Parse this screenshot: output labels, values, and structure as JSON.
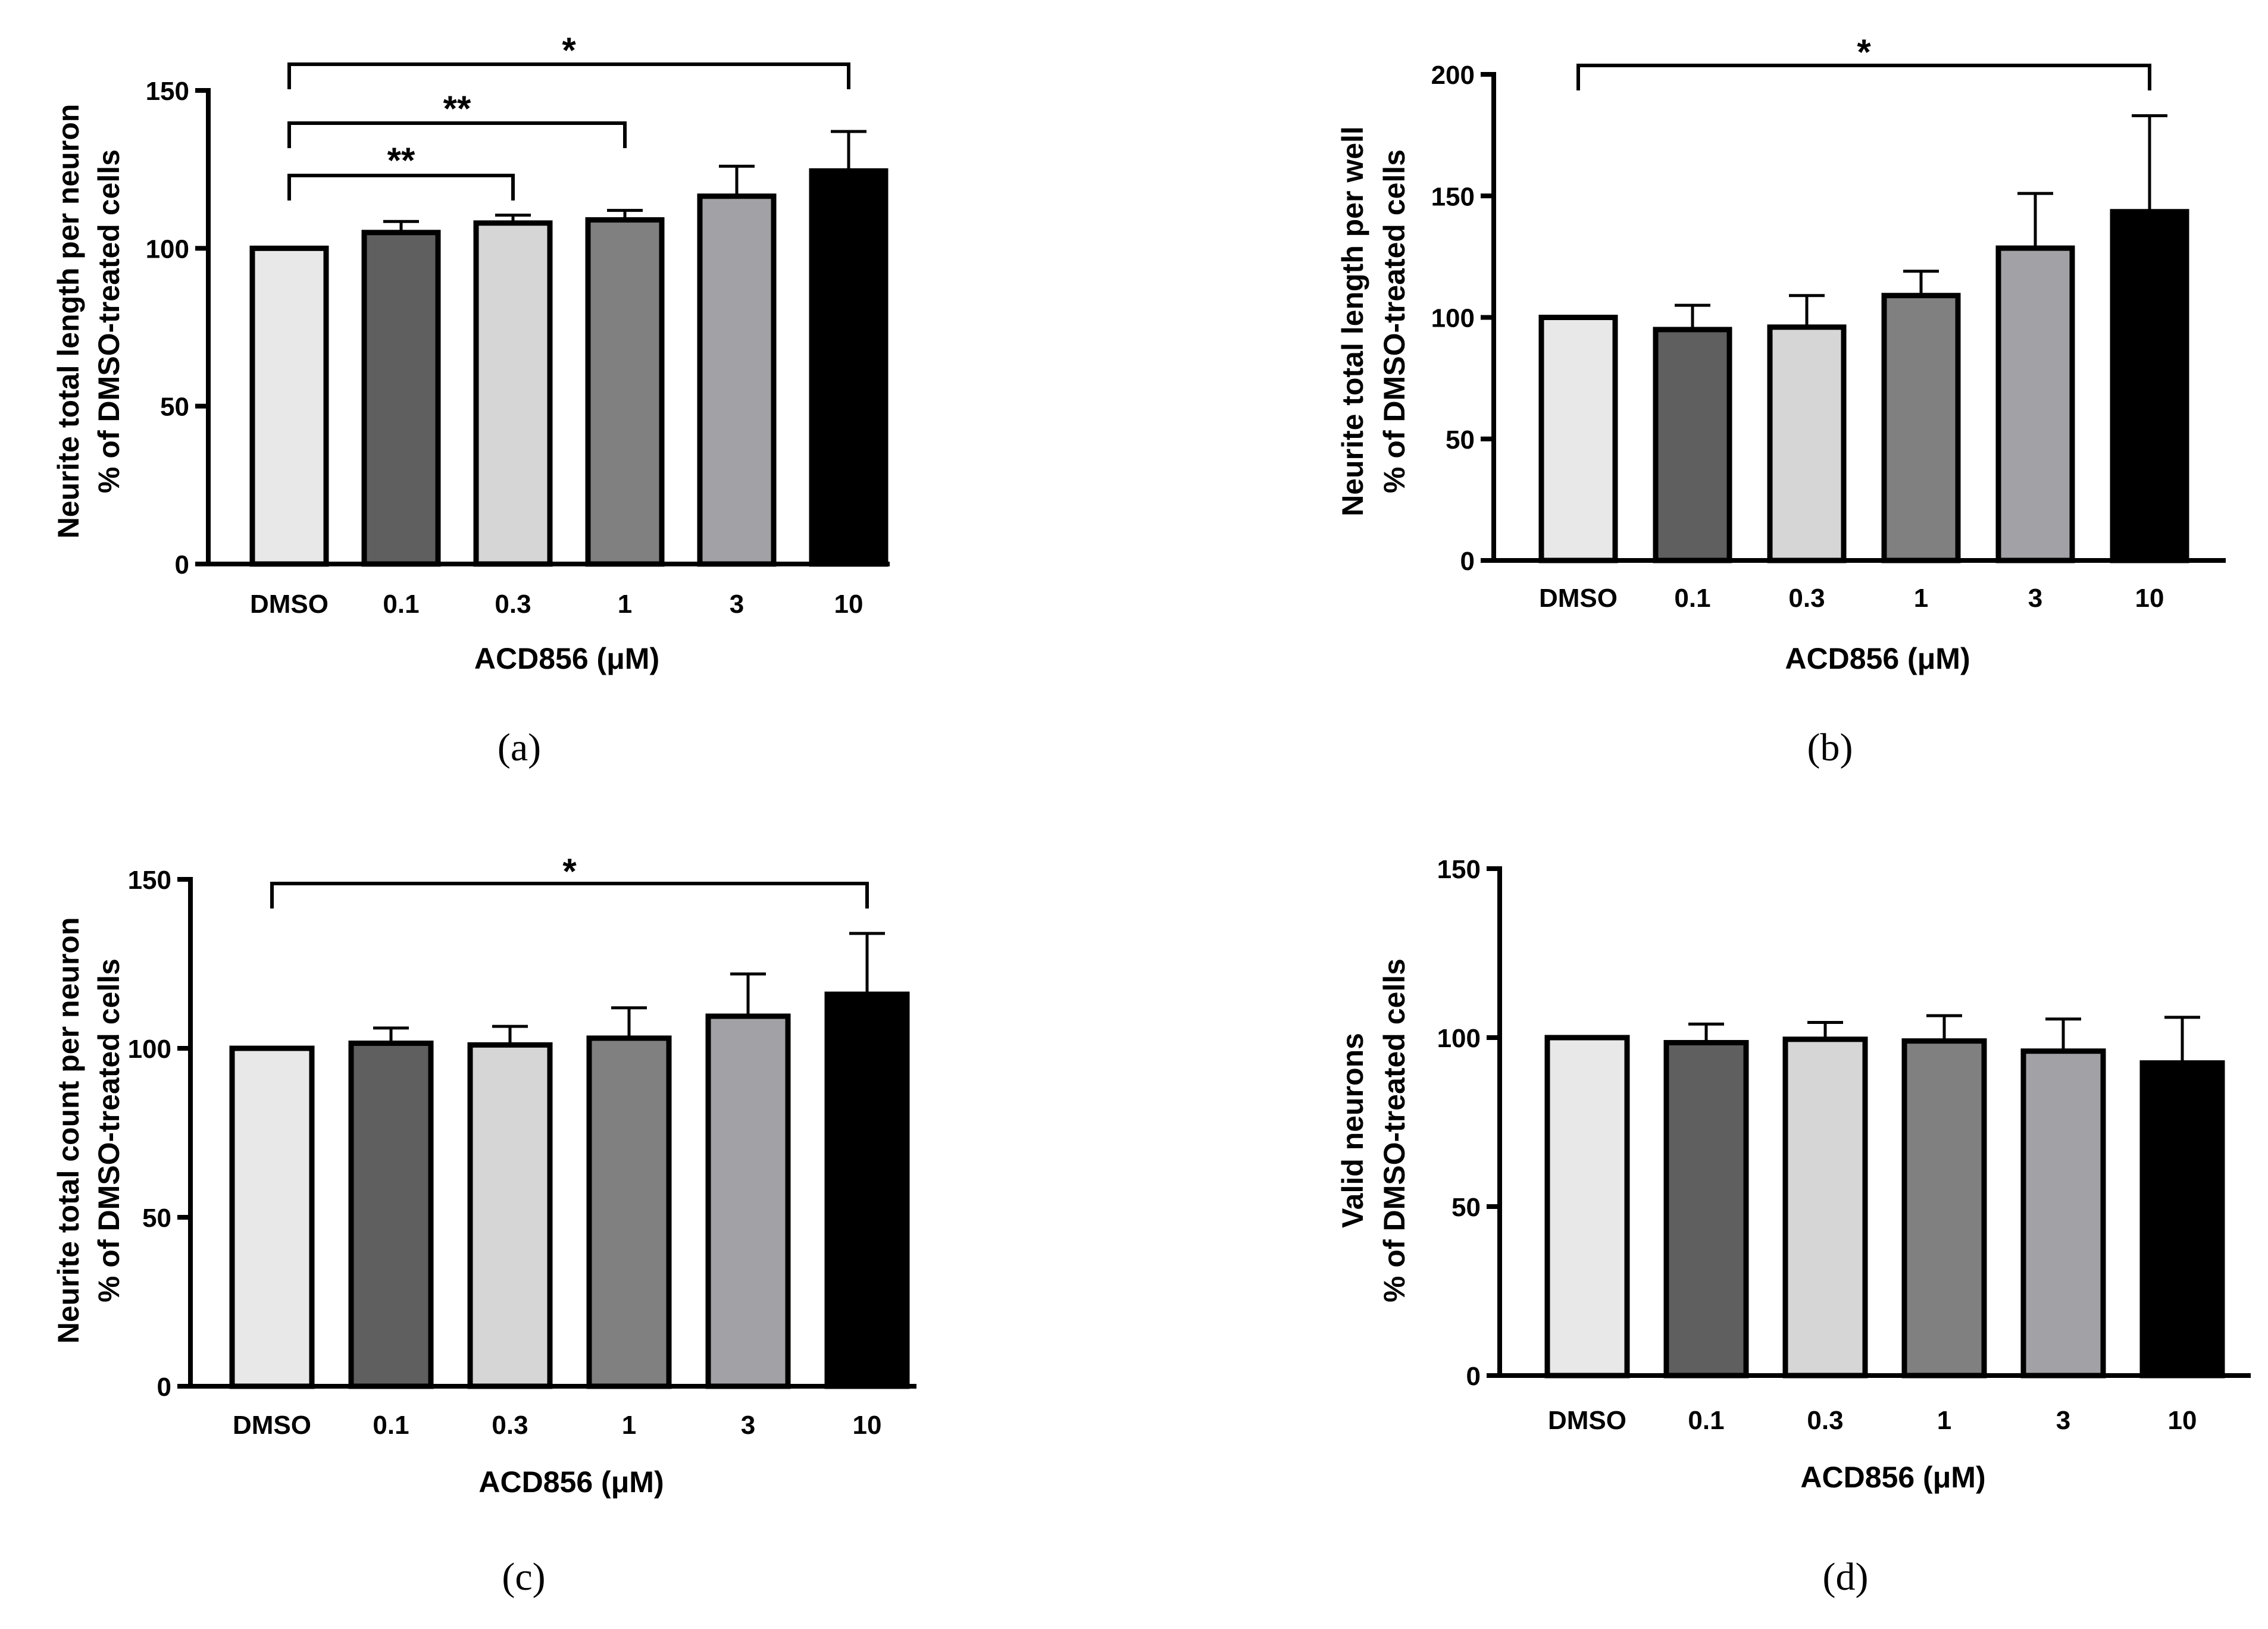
{
  "chart_data": [
    {
      "type": "bar",
      "panel": "(a)",
      "categories": [
        "DMSO",
        "0.1",
        "0.3",
        "1",
        "3",
        "10"
      ],
      "values": [
        100,
        105,
        108,
        109,
        116.5,
        124.5
      ],
      "errors": [
        0,
        3.5,
        2.5,
        3,
        9.5,
        12.5
      ],
      "colors": [
        "#e8e8e8",
        "#5f5f5f",
        "#d6d6d6",
        "#808080",
        "#a2a2a6",
        "#000000"
      ],
      "xlabel": "ACD856 (μM)",
      "ylabel_lines": [
        "Neurite total length per neuron",
        "% of DMSO-treated cells"
      ],
      "ylim": [
        0,
        150
      ],
      "yticks": [
        "0",
        "50",
        "100",
        "150"
      ],
      "brackets": [
        {
          "from": 0,
          "to": 5,
          "label": "*"
        },
        {
          "from": 0,
          "to": 3,
          "label": "**"
        },
        {
          "from": 0,
          "to": 2,
          "label": "**"
        }
      ]
    },
    {
      "type": "bar",
      "panel": "(b)",
      "categories": [
        "DMSO",
        "0.1",
        "0.3",
        "1",
        "3",
        "10"
      ],
      "values": [
        100,
        95,
        96,
        109,
        128.5,
        143.5
      ],
      "errors": [
        0,
        10,
        13,
        10,
        22.5,
        39.5
      ],
      "colors": [
        "#e8e8e8",
        "#5f5f5f",
        "#d6d6d6",
        "#808080",
        "#a2a2a6",
        "#000000"
      ],
      "xlabel": "ACD856 (μM)",
      "ylabel_lines": [
        "Neurite total length per well",
        "% of DMSO-treated cells"
      ],
      "ylim": [
        0,
        200
      ],
      "yticks": [
        "0",
        "50",
        "100",
        "150",
        "200"
      ],
      "brackets": [
        {
          "from": 0,
          "to": 5,
          "label": "*"
        }
      ]
    },
    {
      "type": "bar",
      "panel": "(c)",
      "categories": [
        "DMSO",
        "0.1",
        "0.3",
        "1",
        "3",
        "10"
      ],
      "values": [
        100,
        101.5,
        101,
        103,
        109.5,
        116
      ],
      "errors": [
        0,
        4.5,
        5.5,
        9,
        12.5,
        18
      ],
      "colors": [
        "#e8e8e8",
        "#5f5f5f",
        "#d6d6d6",
        "#808080",
        "#a2a2a6",
        "#000000"
      ],
      "xlabel": "ACD856 (μM)",
      "ylabel_lines": [
        "Neurite total count per neuron",
        "% of DMSO-treated cells"
      ],
      "ylim": [
        0,
        150
      ],
      "yticks": [
        "0",
        "50",
        "100",
        "150"
      ],
      "brackets": [
        {
          "from": 0,
          "to": 5,
          "label": "*"
        }
      ]
    },
    {
      "type": "bar",
      "panel": "(d)",
      "categories": [
        "DMSO",
        "0.1",
        "0.3",
        "1",
        "3",
        "10"
      ],
      "values": [
        100,
        98.5,
        99.5,
        99,
        96,
        92.5
      ],
      "errors": [
        0,
        5.5,
        5,
        7.5,
        9.5,
        13.5
      ],
      "colors": [
        "#e8e8e8",
        "#5f5f5f",
        "#d6d6d6",
        "#808080",
        "#a2a2a6",
        "#000000"
      ],
      "xlabel": "ACD856 (μM)",
      "ylabel_lines": [
        "Valid neurons",
        "% of DMSO-treated cells"
      ],
      "ylim": [
        0,
        150
      ],
      "yticks": [
        "0",
        "50",
        "100",
        "150"
      ],
      "brackets": []
    }
  ]
}
